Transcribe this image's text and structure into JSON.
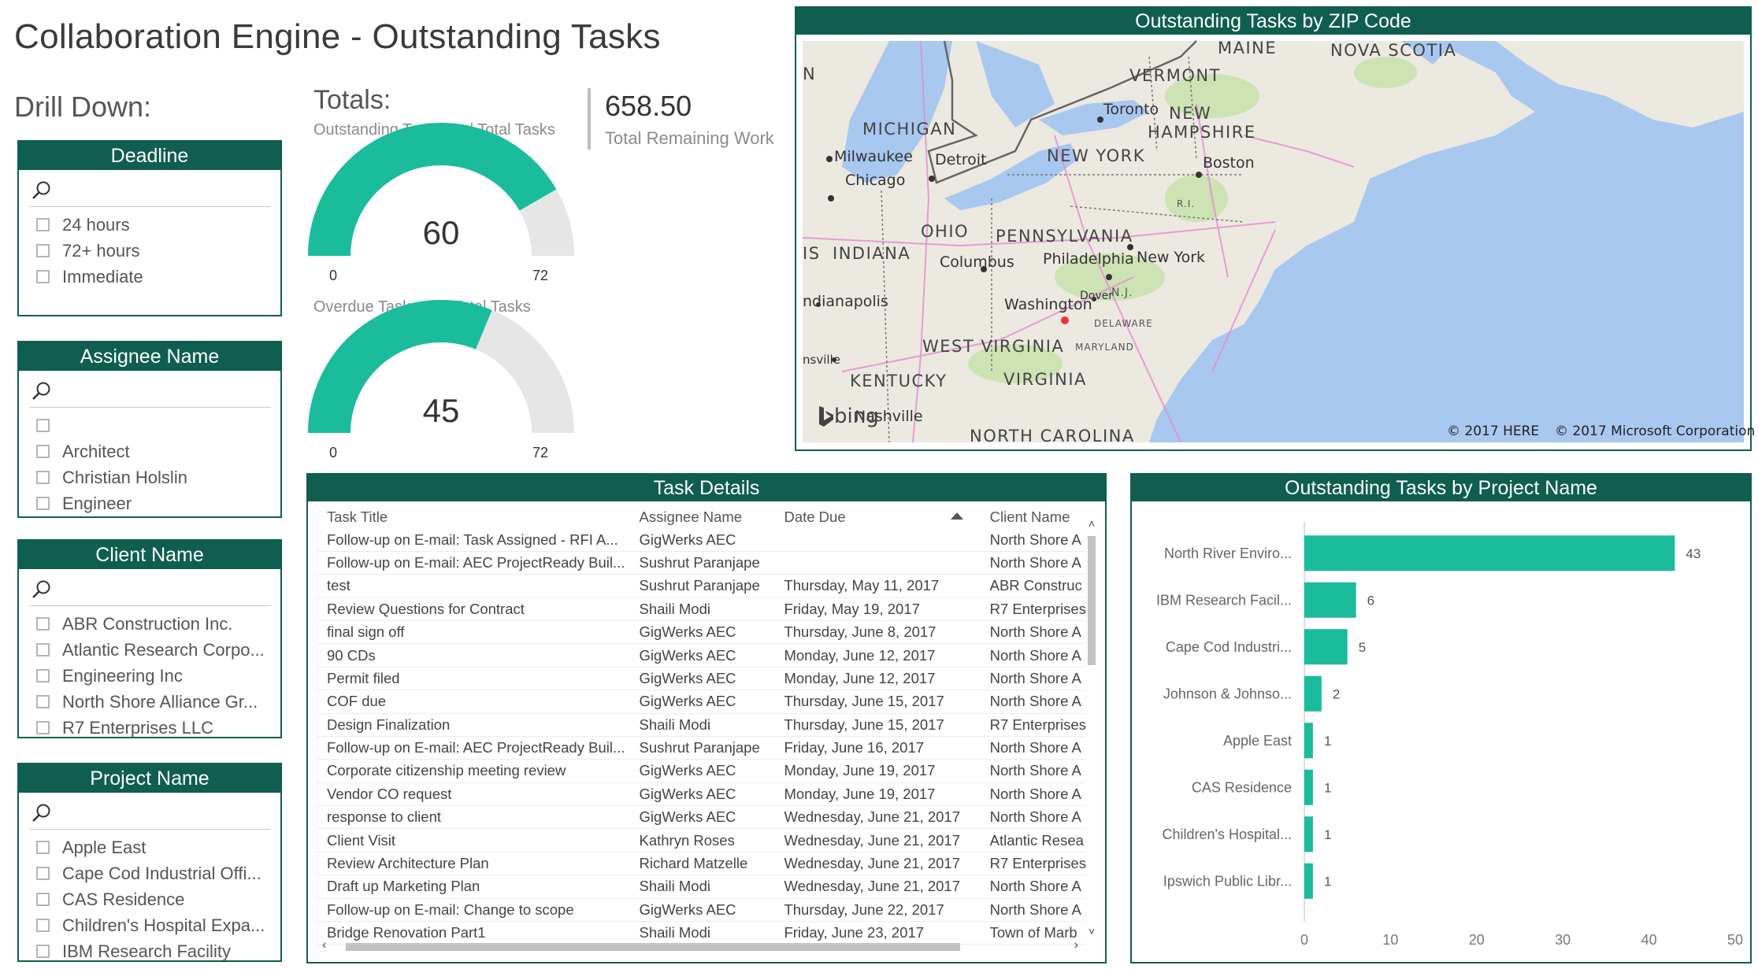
{
  "page": {
    "title": "Collaboration Engine - Outstanding Tasks",
    "drill_down_label": "Drill Down:"
  },
  "slicers": {
    "deadline": {
      "title": "Deadline",
      "items": [
        "24 hours",
        "72+ hours",
        "Immediate"
      ]
    },
    "assignee": {
      "title": "Assignee Name",
      "items": [
        "",
        "Architect",
        "Christian Holslin",
        "Engineer"
      ]
    },
    "client": {
      "title": "Client Name",
      "items": [
        "ABR Construction Inc.",
        "Atlantic Research Corpo...",
        "Engineering Inc",
        "North Shore Alliance Gr...",
        "R7 Enterprises LLC"
      ]
    },
    "project": {
      "title": "Project Name",
      "items": [
        "Apple East",
        "Cape Cod Industrial Offi...",
        "CAS Residence",
        "Children's Hospital Expa...",
        "IBM Research Facility"
      ]
    }
  },
  "totals": {
    "label": "Totals:",
    "gauge1": {
      "label": "Outstanding Tasks and Total Tasks",
      "value": 60,
      "display": "60",
      "min": "0",
      "max": "72",
      "max_value": 72
    },
    "gauge2": {
      "label": "Overdue Tasks and Total Tasks",
      "value": 45,
      "display": "45",
      "min": "0",
      "max": "72",
      "max_value": 72
    }
  },
  "kpi": {
    "value": "658.50",
    "label": "Total Remaining Work"
  },
  "map": {
    "title": "Outstanding Tasks by ZIP Code",
    "states": [
      "MAINE",
      "NOVA SCOTIA",
      "VERMONT",
      "NEW",
      "HAMPSHIRE",
      "MICHIGAN",
      "NEW YORK",
      "OHIO",
      "PENNSYLVANIA",
      "INDIANA",
      "IS",
      "WEST VIRGINIA",
      "KENTUCKY",
      "VIRGINIA",
      "NORTH CAROLINA",
      "R.I.",
      "N.J.",
      "DELAWARE",
      "MARYLAND",
      "N"
    ],
    "cities": [
      "Toronto",
      "Milwaukee",
      "Chicago",
      "Detroit",
      "Boston",
      "Columbus",
      "Philadelphia",
      "New York",
      "Washington",
      "Dover",
      "ndianapolis",
      "nsville",
      "Nashville"
    ],
    "brand": "bing",
    "copyright1": "© 2017 HERE",
    "copyright2": "© 2017 Microsoft Corporation",
    "colors": {
      "water": "#a9c8f0",
      "land": "#ece9e1",
      "park": "#cde3b4",
      "road": "#e58ad0"
    }
  },
  "task_details": {
    "title": "Task Details",
    "columns": [
      "Task Title",
      "Assignee Name",
      "Date Due",
      "Client Name"
    ],
    "rows": [
      [
        "Follow-up on E-mail: Task Assigned - RFI A...",
        "GigWerks AEC",
        "",
        "North Shore A"
      ],
      [
        "Follow-up on E-mail: AEC ProjectReady Buil...",
        "Sushrut Paranjape",
        "",
        "North Shore A"
      ],
      [
        "test",
        "Sushrut Paranjape",
        "Thursday, May 11, 2017",
        "ABR Construc"
      ],
      [
        "Review Questions for Contract",
        "Shaili Modi",
        "Friday, May 19, 2017",
        "R7 Enterprises"
      ],
      [
        "final sign off",
        "GigWerks AEC",
        "Thursday, June 8, 2017",
        "North Shore A"
      ],
      [
        "90 CDs",
        "GigWerks AEC",
        "Monday, June 12, 2017",
        "North Shore A"
      ],
      [
        "Permit filed",
        "GigWerks AEC",
        "Monday, June 12, 2017",
        "North Shore A"
      ],
      [
        "COF due",
        "GigWerks AEC",
        "Thursday, June 15, 2017",
        "North Shore A"
      ],
      [
        "Design Finalization",
        "Shaili Modi",
        "Thursday, June 15, 2017",
        "R7 Enterprises"
      ],
      [
        "Follow-up on E-mail: AEC ProjectReady Buil...",
        "Sushrut Paranjape",
        "Friday, June 16, 2017",
        "North Shore A"
      ],
      [
        "Corporate citizenship meeting review",
        "GigWerks AEC",
        "Monday, June 19, 2017",
        "North Shore A"
      ],
      [
        "Vendor CO request",
        "GigWerks AEC",
        "Monday, June 19, 2017",
        "North Shore A"
      ],
      [
        "response to client",
        "GigWerks AEC",
        "Wednesday, June 21, 2017",
        "North Shore A"
      ],
      [
        "Client Visit",
        "Kathryn Roses",
        "Wednesday, June 21, 2017",
        "Atlantic Resea"
      ],
      [
        "Review Architecture Plan",
        "Richard Matzelle",
        "Wednesday, June 21, 2017",
        "R7 Enterprises"
      ],
      [
        "Draft up Marketing Plan",
        "Shaili Modi",
        "Wednesday, June 21, 2017",
        "North Shore A"
      ],
      [
        "Follow-up on E-mail: Change to scope",
        "GigWerks AEC",
        "Thursday, June 22, 2017",
        "North Shore A"
      ],
      [
        "Bridge Renovation Part1",
        "Shaili Modi",
        "Friday, June 23, 2017",
        "Town of Marb"
      ]
    ]
  },
  "project_chart": {
    "title": "Outstanding Tasks by Project Name",
    "bar_color": "#1abc9c"
  },
  "chart_data": {
    "type": "bar",
    "orientation": "horizontal",
    "categories": [
      "North River Enviro...",
      "IBM Research Facil...",
      "Cape Cod Industri...",
      "Johnson & Johnso...",
      "Apple East",
      "CAS Residence",
      "Children's Hospital...",
      "Ipswich Public Libr..."
    ],
    "values": [
      43,
      6,
      5,
      2,
      1,
      1,
      1,
      1
    ],
    "xlim": [
      0,
      50
    ],
    "xticks": [
      0,
      10,
      20,
      30,
      40,
      50
    ],
    "grid": false
  }
}
